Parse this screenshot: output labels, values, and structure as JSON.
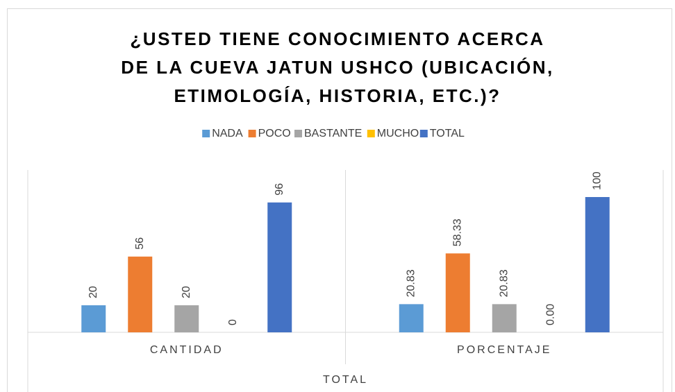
{
  "chart_data": {
    "type": "bar",
    "title": "¿USTED TIENE CONOCIMIENTO ACERCA DE LA CUEVA JATUN USHCO (UBICACIÓN, ETIMOLOGÍA, HISTORIA, ETC.)?",
    "categories": [
      "CANTIDAD",
      "PORCENTAJE"
    ],
    "group_label": "TOTAL",
    "series": [
      {
        "name": "NADA",
        "color": "#5b9bd5",
        "values": [
          20,
          20.83
        ],
        "value_labels": [
          "20",
          "20.83"
        ]
      },
      {
        "name": "POCO",
        "color": "#ed7d31",
        "values": [
          56,
          58.33
        ],
        "value_labels": [
          "56",
          "58.33"
        ]
      },
      {
        "name": "BASTANTE",
        "color": "#a5a5a5",
        "values": [
          20,
          20.83
        ],
        "value_labels": [
          "20",
          "20.83"
        ]
      },
      {
        "name": "MUCHO",
        "color": "#ffc000",
        "values": [
          0,
          0
        ],
        "value_labels": [
          "0",
          "0.00"
        ]
      },
      {
        "name": "TOTAL",
        "color": "#4472c4",
        "values": [
          96,
          100
        ],
        "value_labels": [
          "96",
          "100"
        ]
      }
    ],
    "ylim": [
      0,
      120
    ],
    "legend": "top"
  }
}
